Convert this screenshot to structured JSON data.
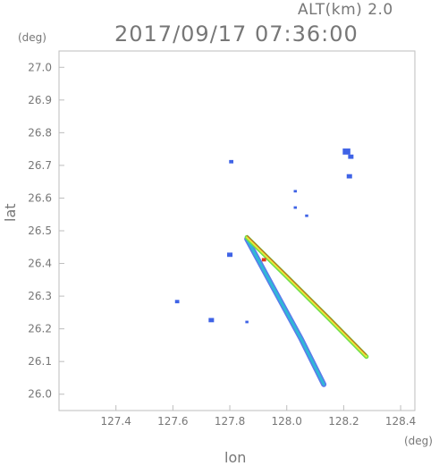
{
  "header": {
    "altitude_label": "ALT(km) 2.0",
    "timestamp": "2017/09/17 07:36:00"
  },
  "chart_data": {
    "type": "scatter",
    "title": "2017/09/17 07:36:00",
    "xlabel": "lon",
    "ylabel": "lat",
    "x_unit": "(deg)",
    "y_unit": "(deg)",
    "xlim": [
      127.2,
      128.45
    ],
    "ylim": [
      25.95,
      27.05
    ],
    "x_ticks": [
      127.4,
      127.6,
      127.8,
      128.0,
      128.2,
      128.4
    ],
    "x_tick_labels": [
      "127.4",
      "127.6",
      "127.8",
      "128.0",
      "128.2",
      "128.4"
    ],
    "y_ticks": [
      26.0,
      26.1,
      26.2,
      26.3,
      26.4,
      26.5,
      26.6,
      26.7,
      26.8,
      26.9,
      27.0
    ],
    "y_tick_labels": [
      "26.0",
      "26.1",
      "26.2",
      "26.3",
      "26.4",
      "26.5",
      "26.6",
      "26.7",
      "26.8",
      "26.9",
      "27.0"
    ],
    "grid": false,
    "colors": {
      "echo_blue": "#3f63e6",
      "echo_cyan": "#2fb8d8",
      "echo_green": "#6fe04a",
      "echo_yellow": "#e8e83a",
      "echo_red": "#e03a1a"
    },
    "beams": [
      {
        "name": "southern beam",
        "path": [
          [
            127.86,
            26.475
          ],
          [
            127.95,
            26.33
          ],
          [
            128.05,
            26.17
          ],
          [
            128.13,
            26.03
          ]
        ],
        "color": "#2fb8d8"
      },
      {
        "name": "southeastern beam",
        "path": [
          [
            127.86,
            26.48
          ],
          [
            128.0,
            26.36
          ],
          [
            128.15,
            26.23
          ],
          [
            128.28,
            26.115
          ]
        ],
        "color": "#6fe04a"
      }
    ],
    "echoes": [
      {
        "lon": 128.21,
        "lat": 26.74,
        "size": 3,
        "color": "#3f63e6"
      },
      {
        "lon": 128.225,
        "lat": 26.725,
        "size": 2,
        "color": "#3f63e6"
      },
      {
        "lon": 128.22,
        "lat": 26.665,
        "size": 2,
        "color": "#3f63e6"
      },
      {
        "lon": 127.805,
        "lat": 26.71,
        "size": 1.5,
        "color": "#3f63e6"
      },
      {
        "lon": 128.03,
        "lat": 26.62,
        "size": 1,
        "color": "#3f63e6"
      },
      {
        "lon": 128.03,
        "lat": 26.57,
        "size": 1,
        "color": "#3f63e6"
      },
      {
        "lon": 128.07,
        "lat": 26.545,
        "size": 1,
        "color": "#3f63e6"
      },
      {
        "lon": 127.8,
        "lat": 26.425,
        "size": 2,
        "color": "#3f63e6"
      },
      {
        "lon": 127.615,
        "lat": 26.282,
        "size": 1.5,
        "color": "#3f63e6"
      },
      {
        "lon": 127.735,
        "lat": 26.225,
        "size": 2,
        "color": "#3f63e6"
      },
      {
        "lon": 127.86,
        "lat": 26.22,
        "size": 1,
        "color": "#3f63e6"
      },
      {
        "lon": 127.92,
        "lat": 26.41,
        "size": 1.5,
        "color": "#e03a1a"
      }
    ]
  }
}
